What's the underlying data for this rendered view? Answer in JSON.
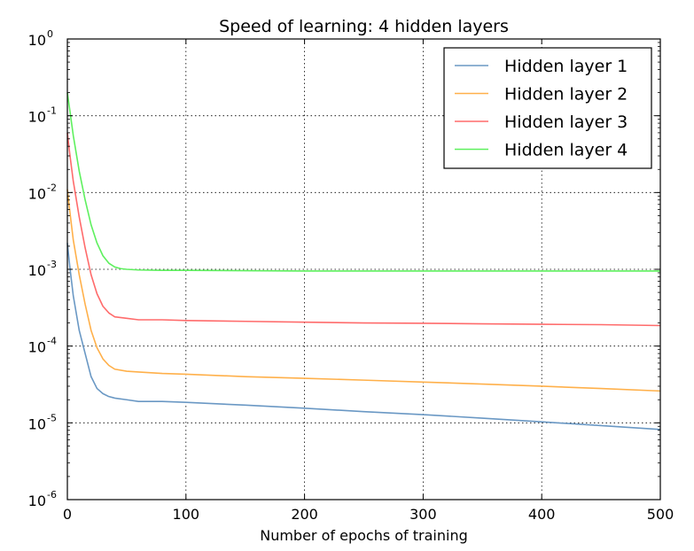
{
  "chart_data": {
    "type": "line",
    "title": "Speed of learning: 4 hidden layers",
    "xlabel": "Number of epochs of training",
    "ylabel": "",
    "xlim": [
      0,
      500
    ],
    "ylim": [
      1e-06,
      1
    ],
    "yscale": "log",
    "grid": true,
    "legend_position": "top-right",
    "x_ticks": [
      0,
      100,
      200,
      300,
      400,
      500
    ],
    "y_ticks": [
      {
        "value": 1,
        "base": "10",
        "exp": "0"
      },
      {
        "value": 0.1,
        "base": "10",
        "exp": "-1"
      },
      {
        "value": 0.01,
        "base": "10",
        "exp": "-2"
      },
      {
        "value": 0.001,
        "base": "10",
        "exp": "-3"
      },
      {
        "value": 0.0001,
        "base": "10",
        "exp": "-4"
      },
      {
        "value": 1e-05,
        "base": "10",
        "exp": "-5"
      },
      {
        "value": 1e-06,
        "base": "10",
        "exp": "-6"
      }
    ],
    "series": [
      {
        "name": "Hidden layer 1",
        "color": "#6a98c4",
        "x": [
          0,
          2,
          5,
          10,
          15,
          20,
          25,
          30,
          35,
          40,
          50,
          60,
          80,
          100,
          150,
          200,
          250,
          300,
          350,
          400,
          450,
          500
        ],
        "y": [
          0.0022,
          0.0011,
          0.00045,
          0.00016,
          8e-05,
          4e-05,
          2.8e-05,
          2.4e-05,
          2.2e-05,
          2.1e-05,
          2e-05,
          1.9e-05,
          1.9e-05,
          1.85e-05,
          1.7e-05,
          1.55e-05,
          1.4e-05,
          1.28e-05,
          1.15e-05,
          1.03e-05,
          9.2e-06,
          8.2e-06
        ]
      },
      {
        "name": "Hidden layer 2",
        "color": "#ffb04a",
        "x": [
          0,
          2,
          5,
          10,
          15,
          20,
          25,
          30,
          35,
          40,
          50,
          60,
          80,
          100,
          150,
          200,
          250,
          300,
          350,
          400,
          450,
          500
        ],
        "y": [
          0.011,
          0.0058,
          0.0024,
          0.00085,
          0.00035,
          0.00016,
          9.5e-05,
          6.8e-05,
          5.6e-05,
          5e-05,
          4.7e-05,
          4.6e-05,
          4.4e-05,
          4.3e-05,
          4e-05,
          3.8e-05,
          3.6e-05,
          3.4e-05,
          3.2e-05,
          3e-05,
          2.8e-05,
          2.6e-05
        ]
      },
      {
        "name": "Hidden layer 3",
        "color": "#ff6b6b",
        "x": [
          0,
          2,
          5,
          10,
          15,
          20,
          25,
          30,
          35,
          40,
          50,
          60,
          80,
          100,
          150,
          200,
          250,
          300,
          350,
          400,
          450,
          500
        ],
        "y": [
          0.06,
          0.032,
          0.014,
          0.0048,
          0.0019,
          0.00085,
          0.00048,
          0.00033,
          0.00027,
          0.00024,
          0.00023,
          0.00022,
          0.00022,
          0.000215,
          0.00021,
          0.000205,
          0.0002,
          0.000198,
          0.000195,
          0.000192,
          0.00019,
          0.000185
        ]
      },
      {
        "name": "Hidden layer 4",
        "color": "#5ef05e",
        "x": [
          0,
          2,
          5,
          10,
          15,
          20,
          25,
          30,
          35,
          40,
          45,
          50,
          55,
          60,
          80,
          100,
          150,
          200,
          250,
          300,
          350,
          400,
          450,
          500
        ],
        "y": [
          0.2,
          0.12,
          0.055,
          0.019,
          0.008,
          0.0038,
          0.0022,
          0.0015,
          0.0012,
          0.00107,
          0.00102,
          0.001,
          0.00099,
          0.00098,
          0.00097,
          0.00097,
          0.00096,
          0.00095,
          0.00095,
          0.00095,
          0.00095,
          0.00095,
          0.00095,
          0.00095
        ]
      }
    ]
  }
}
